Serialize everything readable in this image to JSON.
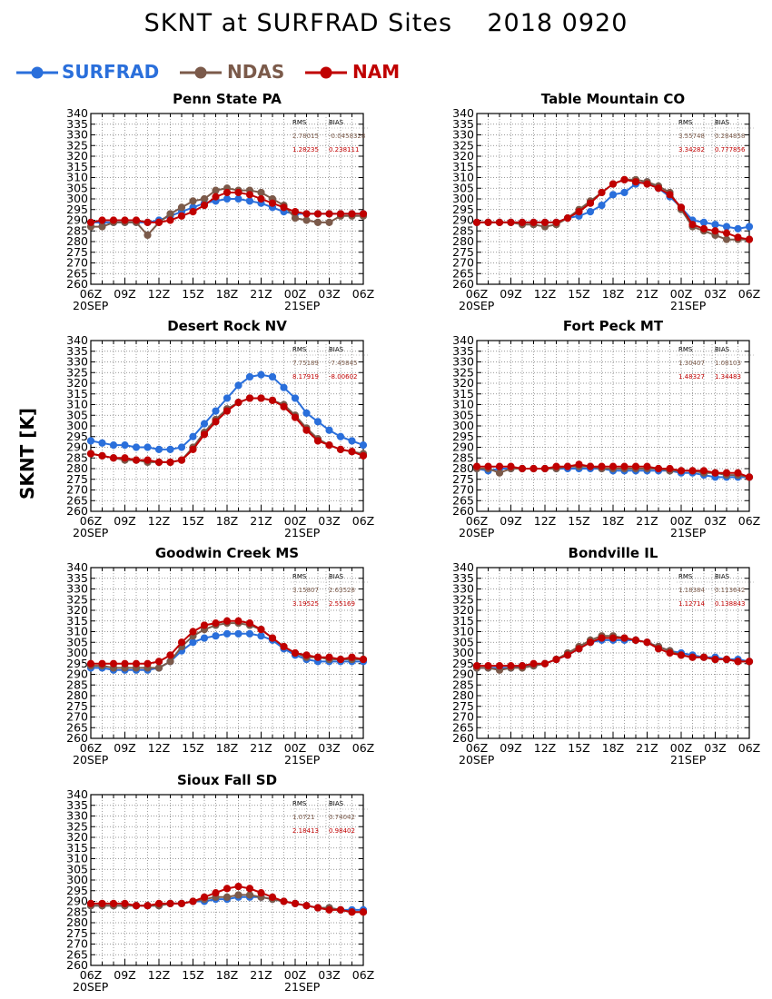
{
  "header": {
    "title": "SKNT at SURFRAD Sites    2018 0920",
    "ylabel": "SKNT [K]"
  },
  "legend": [
    {
      "name": "SURFRAD",
      "color": "#2a6fdb"
    },
    {
      "name": "NDAS",
      "color": "#7b5a4a"
    },
    {
      "name": "NAM",
      "color": "#c00000"
    }
  ],
  "stats_headers": {
    "rms": "RMS",
    "bias": "BIAS"
  },
  "chart_data": [
    {
      "type": "line",
      "title": "Penn State PA",
      "x": [
        0,
        1,
        2,
        3,
        4,
        5,
        6,
        7,
        8,
        9,
        10,
        11,
        12,
        13,
        14,
        15,
        16,
        17,
        18,
        19,
        20,
        21,
        22,
        23,
        24
      ],
      "xticks": [
        "06Z",
        "09Z",
        "12Z",
        "15Z",
        "18Z",
        "21Z",
        "00Z",
        "03Z",
        "06Z"
      ],
      "xdates": [
        "20SEP",
        "21SEP"
      ],
      "ylim": [
        260,
        340
      ],
      "yticks": [
        260,
        265,
        270,
        275,
        280,
        285,
        290,
        295,
        300,
        305,
        310,
        315,
        320,
        325,
        330,
        335,
        340
      ],
      "grid": true,
      "stats": {
        "NDAS": {
          "rms": "2.78015",
          "bias": "-0.0458328"
        },
        "NAM": {
          "rms": "1.28235",
          "bias": "0.238111"
        }
      },
      "series": [
        {
          "name": "SURFRAD",
          "values": [
            289,
            289,
            289,
            289,
            289,
            289,
            290,
            292,
            294,
            296,
            298,
            299,
            300,
            300,
            299,
            298,
            296,
            294,
            293,
            293,
            293,
            293,
            293,
            293,
            293
          ]
        },
        {
          "name": "NDAS",
          "values": [
            287,
            287,
            289,
            289,
            289,
            283,
            289,
            293,
            296,
            299,
            300,
            304,
            305,
            304,
            304,
            303,
            300,
            297,
            291,
            290,
            289,
            289,
            292,
            292,
            292
          ]
        },
        {
          "name": "NAM",
          "values": [
            289,
            290,
            290,
            290,
            290,
            289,
            289,
            290,
            292,
            294,
            297,
            301,
            303,
            303,
            302,
            300,
            298,
            296,
            294,
            293,
            293,
            293,
            293,
            293,
            293
          ]
        }
      ]
    },
    {
      "type": "line",
      "title": "Table Mountain CO",
      "x": [
        0,
        1,
        2,
        3,
        4,
        5,
        6,
        7,
        8,
        9,
        10,
        11,
        12,
        13,
        14,
        15,
        16,
        17,
        18,
        19,
        20,
        21,
        22,
        23,
        24
      ],
      "xticks": [
        "06Z",
        "09Z",
        "12Z",
        "15Z",
        "18Z",
        "21Z",
        "00Z",
        "03Z",
        "06Z"
      ],
      "xdates": [
        "20SEP",
        "21SEP"
      ],
      "ylim": [
        260,
        340
      ],
      "yticks": [
        260,
        265,
        270,
        275,
        280,
        285,
        290,
        295,
        300,
        305,
        310,
        315,
        320,
        325,
        330,
        335,
        340
      ],
      "grid": true,
      "stats": {
        "NDAS": {
          "rms": "3.55748",
          "bias": "0.284858"
        },
        "NAM": {
          "rms": "3.34282",
          "bias": "0.777856"
        }
      },
      "series": [
        {
          "name": "SURFRAD",
          "values": [
            289,
            289,
            289,
            289,
            289,
            289,
            289,
            289,
            291,
            292,
            294,
            297,
            302,
            303,
            307,
            308,
            305,
            301,
            296,
            290,
            289,
            288,
            287,
            286,
            287
          ]
        },
        {
          "name": "NDAS",
          "values": [
            289,
            289,
            289,
            289,
            288,
            288,
            287,
            288,
            291,
            295,
            299,
            303,
            307,
            309,
            309,
            308,
            306,
            303,
            295,
            287,
            285,
            283,
            281,
            281,
            281
          ]
        },
        {
          "name": "NAM",
          "values": [
            289,
            289,
            289,
            289,
            289,
            289,
            289,
            289,
            291,
            294,
            298,
            303,
            307,
            309,
            308,
            307,
            305,
            302,
            296,
            288,
            286,
            285,
            284,
            282,
            281
          ]
        }
      ]
    },
    {
      "type": "line",
      "title": "Desert Rock NV",
      "x": [
        0,
        1,
        2,
        3,
        4,
        5,
        6,
        7,
        8,
        9,
        10,
        11,
        12,
        13,
        14,
        15,
        16,
        17,
        18,
        19,
        20,
        21,
        22,
        23,
        24
      ],
      "xticks": [
        "06Z",
        "09Z",
        "12Z",
        "15Z",
        "18Z",
        "21Z",
        "00Z",
        "03Z",
        "06Z"
      ],
      "xdates": [
        "20SEP",
        "21SEP"
      ],
      "ylim": [
        260,
        340
      ],
      "yticks": [
        260,
        265,
        270,
        275,
        280,
        285,
        290,
        295,
        300,
        305,
        310,
        315,
        320,
        325,
        330,
        335,
        340
      ],
      "grid": true,
      "stats": {
        "NDAS": {
          "rms": "7.75189",
          "bias": "-7.45845"
        },
        "NAM": {
          "rms": "8.17919",
          "bias": "-8.00602"
        }
      },
      "series": [
        {
          "name": "SURFRAD",
          "values": [
            293,
            292,
            291,
            291,
            290,
            290,
            289,
            289,
            290,
            295,
            301,
            307,
            313,
            319,
            323,
            324,
            323,
            318,
            313,
            306,
            302,
            298,
            295,
            293,
            291
          ]
        },
        {
          "name": "NDAS",
          "values": [
            287,
            286,
            285,
            284,
            284,
            283,
            283,
            283,
            284,
            290,
            297,
            303,
            308,
            311,
            313,
            313,
            312,
            310,
            305,
            299,
            294,
            291,
            289,
            288,
            287
          ]
        },
        {
          "name": "NAM",
          "values": [
            287,
            286,
            285,
            285,
            284,
            284,
            283,
            283,
            284,
            289,
            296,
            302,
            307,
            311,
            313,
            313,
            312,
            309,
            304,
            298,
            293,
            291,
            289,
            288,
            286
          ]
        }
      ]
    },
    {
      "type": "line",
      "title": "Fort Peck MT",
      "x": [
        0,
        1,
        2,
        3,
        4,
        5,
        6,
        7,
        8,
        9,
        10,
        11,
        12,
        13,
        14,
        15,
        16,
        17,
        18,
        19,
        20,
        21,
        22,
        23,
        24
      ],
      "xticks": [
        "06Z",
        "09Z",
        "12Z",
        "15Z",
        "18Z",
        "21Z",
        "00Z",
        "03Z",
        "06Z"
      ],
      "xdates": [
        "20SEP",
        "21SEP"
      ],
      "ylim": [
        260,
        340
      ],
      "yticks": [
        260,
        265,
        270,
        275,
        280,
        285,
        290,
        295,
        300,
        305,
        310,
        315,
        320,
        325,
        330,
        335,
        340
      ],
      "grid": true,
      "stats": {
        "NDAS": {
          "rms": "1.30407",
          "bias": "1.08103"
        },
        "NAM": {
          "rms": "1.48327",
          "bias": "1.34483"
        }
      },
      "series": [
        {
          "name": "SURFRAD",
          "values": [
            280,
            279,
            280,
            280,
            280,
            280,
            280,
            280,
            280,
            280,
            280,
            280,
            279,
            279,
            279,
            279,
            279,
            279,
            278,
            278,
            277,
            276,
            276,
            276,
            276
          ]
        },
        {
          "name": "NDAS",
          "values": [
            280,
            280,
            278,
            280,
            280,
            280,
            280,
            280,
            281,
            281,
            281,
            280,
            280,
            280,
            280,
            280,
            280,
            279,
            279,
            279,
            278,
            278,
            277,
            277,
            276
          ]
        },
        {
          "name": "NAM",
          "values": [
            281,
            281,
            281,
            281,
            280,
            280,
            280,
            281,
            281,
            282,
            281,
            281,
            281,
            281,
            281,
            281,
            280,
            280,
            279,
            279,
            279,
            278,
            278,
            278,
            276
          ]
        }
      ]
    },
    {
      "type": "line",
      "title": "Goodwin Creek MS",
      "x": [
        0,
        1,
        2,
        3,
        4,
        5,
        6,
        7,
        8,
        9,
        10,
        11,
        12,
        13,
        14,
        15,
        16,
        17,
        18,
        19,
        20,
        21,
        22,
        23,
        24
      ],
      "xticks": [
        "06Z",
        "09Z",
        "12Z",
        "15Z",
        "18Z",
        "21Z",
        "00Z",
        "03Z",
        "06Z"
      ],
      "xdates": [
        "20SEP",
        "21SEP"
      ],
      "ylim": [
        260,
        340
      ],
      "yticks": [
        260,
        265,
        270,
        275,
        280,
        285,
        290,
        295,
        300,
        305,
        310,
        315,
        320,
        325,
        330,
        335,
        340
      ],
      "grid": true,
      "stats": {
        "NDAS": {
          "rms": "3.15807",
          "bias": "2.63528"
        },
        "NAM": {
          "rms": "3.19525",
          "bias": "2.55169"
        }
      },
      "series": [
        {
          "name": "SURFRAD",
          "values": [
            293,
            293,
            292,
            292,
            292,
            292,
            293,
            296,
            301,
            305,
            307,
            308,
            309,
            309,
            309,
            308,
            306,
            302,
            299,
            297,
            296,
            296,
            296,
            296,
            296
          ]
        },
        {
          "name": "NDAS",
          "values": [
            294,
            294,
            293,
            293,
            293,
            293,
            293,
            296,
            303,
            308,
            311,
            313,
            314,
            314,
            313,
            311,
            307,
            303,
            300,
            298,
            298,
            297,
            297,
            297,
            297
          ]
        },
        {
          "name": "NAM",
          "values": [
            295,
            295,
            295,
            295,
            295,
            295,
            296,
            299,
            305,
            310,
            313,
            314,
            315,
            315,
            314,
            311,
            307,
            303,
            300,
            299,
            298,
            298,
            297,
            298,
            297
          ]
        }
      ]
    },
    {
      "type": "line",
      "title": "Bondville IL",
      "x": [
        0,
        1,
        2,
        3,
        4,
        5,
        6,
        7,
        8,
        9,
        10,
        11,
        12,
        13,
        14,
        15,
        16,
        17,
        18,
        19,
        20,
        21,
        22,
        23,
        24
      ],
      "xticks": [
        "06Z",
        "09Z",
        "12Z",
        "15Z",
        "18Z",
        "21Z",
        "00Z",
        "03Z",
        "06Z"
      ],
      "xdates": [
        "20SEP",
        "21SEP"
      ],
      "ylim": [
        260,
        340
      ],
      "yticks": [
        260,
        265,
        270,
        275,
        280,
        285,
        290,
        295,
        300,
        305,
        310,
        315,
        320,
        325,
        330,
        335,
        340
      ],
      "grid": true,
      "stats": {
        "NDAS": {
          "rms": "1.18384",
          "bias": "0.113642"
        },
        "NAM": {
          "rms": "1.12714",
          "bias": "0.138843"
        }
      },
      "series": [
        {
          "name": "SURFRAD",
          "values": [
            293,
            293,
            293,
            293,
            294,
            294,
            295,
            297,
            299,
            302,
            305,
            306,
            306,
            306,
            306,
            305,
            303,
            301,
            300,
            299,
            298,
            298,
            297,
            297,
            296
          ]
        },
        {
          "name": "NDAS",
          "values": [
            293,
            293,
            292,
            293,
            293,
            294,
            295,
            297,
            300,
            303,
            306,
            308,
            308,
            307,
            306,
            305,
            303,
            301,
            299,
            298,
            298,
            297,
            297,
            296,
            296
          ]
        },
        {
          "name": "NAM",
          "values": [
            294,
            294,
            294,
            294,
            294,
            295,
            295,
            297,
            299,
            302,
            305,
            307,
            307,
            307,
            306,
            305,
            302,
            300,
            299,
            298,
            298,
            297,
            297,
            296,
            296
          ]
        }
      ]
    },
    {
      "type": "line",
      "title": "Sioux Fall SD",
      "x": [
        0,
        1,
        2,
        3,
        4,
        5,
        6,
        7,
        8,
        9,
        10,
        11,
        12,
        13,
        14,
        15,
        16,
        17,
        18,
        19,
        20,
        21,
        22,
        23,
        24
      ],
      "xticks": [
        "06Z",
        "09Z",
        "12Z",
        "15Z",
        "18Z",
        "21Z",
        "00Z",
        "03Z",
        "06Z"
      ],
      "xdates": [
        "20SEP",
        "21SEP"
      ],
      "ylim": [
        260,
        340
      ],
      "yticks": [
        260,
        265,
        270,
        275,
        280,
        285,
        290,
        295,
        300,
        305,
        310,
        315,
        320,
        325,
        330,
        335,
        340
      ],
      "grid": true,
      "stats": {
        "NDAS": {
          "rms": "1.0721",
          "bias": "0.74042"
        },
        "NAM": {
          "rms": "2.18413",
          "bias": "0.98402"
        }
      },
      "series": [
        {
          "name": "SURFRAD",
          "values": [
            288,
            288,
            288,
            288,
            288,
            288,
            288,
            289,
            289,
            290,
            290,
            291,
            291,
            292,
            292,
            292,
            291,
            290,
            289,
            288,
            287,
            287,
            286,
            286,
            286
          ]
        },
        {
          "name": "NDAS",
          "values": [
            288,
            288,
            288,
            288,
            288,
            288,
            288,
            289,
            289,
            290,
            291,
            292,
            292,
            293,
            293,
            292,
            291,
            290,
            289,
            288,
            287,
            287,
            286,
            285,
            285
          ]
        },
        {
          "name": "NAM",
          "values": [
            289,
            289,
            289,
            289,
            288,
            288,
            289,
            289,
            289,
            290,
            292,
            294,
            296,
            297,
            296,
            294,
            292,
            290,
            289,
            288,
            287,
            286,
            286,
            285,
            285
          ]
        }
      ]
    }
  ]
}
